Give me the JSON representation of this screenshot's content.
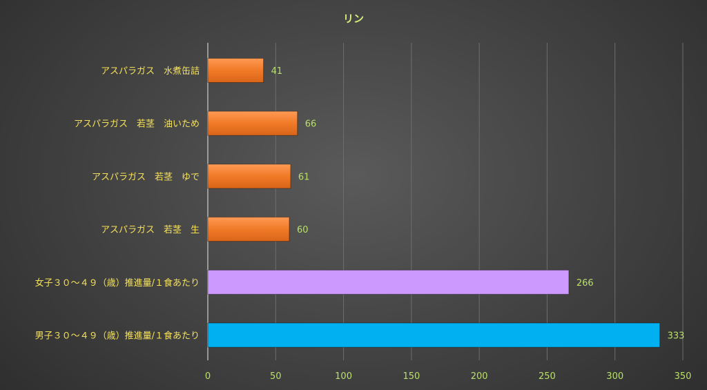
{
  "chart_data": {
    "type": "bar",
    "orientation": "horizontal",
    "title": "リン",
    "categories": [
      "アスパラガス　水煮缶詰",
      "アスパラガス　若茎　油いため",
      "アスパラガス　若茎　ゆで",
      "アスパラガス　若茎　生",
      "女子３０～４９（歳）推進量/１食あたり",
      "男子３０～４９（歳）推進量/１食あたり"
    ],
    "values": [
      41,
      66,
      61,
      60,
      266,
      333
    ],
    "bar_colors": [
      "#f07a26",
      "#f07a26",
      "#f07a26",
      "#f07a26",
      "#cc99ff",
      "#00b0f0"
    ],
    "data_labels": [
      "41",
      "66",
      "61",
      "60",
      "266",
      "333"
    ],
    "xlim": [
      0,
      350
    ],
    "xticks": [
      0,
      50,
      100,
      150,
      200,
      250,
      300,
      350
    ],
    "xtick_labels": [
      "0",
      "50",
      "100",
      "150",
      "200",
      "250",
      "300",
      "350"
    ],
    "grid": "vertical",
    "legend": "none"
  }
}
